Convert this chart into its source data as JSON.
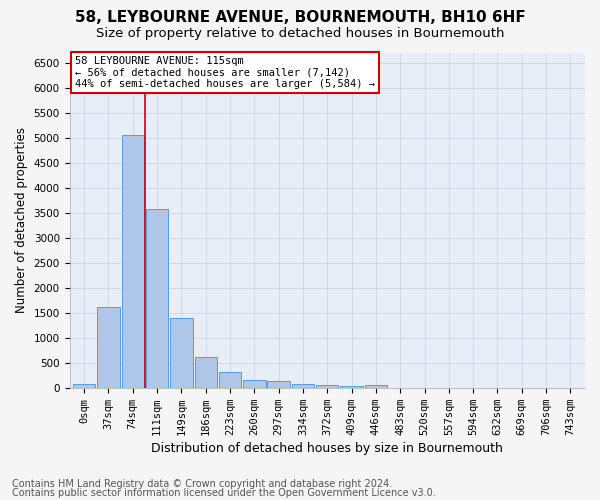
{
  "title1": "58, LEYBOURNE AVENUE, BOURNEMOUTH, BH10 6HF",
  "title2": "Size of property relative to detached houses in Bournemouth",
  "xlabel": "Distribution of detached houses by size in Bournemouth",
  "ylabel": "Number of detached properties",
  "footer1": "Contains HM Land Registry data © Crown copyright and database right 2024.",
  "footer2": "Contains public sector information licensed under the Open Government Licence v3.0.",
  "bar_labels": [
    "0sqm",
    "37sqm",
    "74sqm",
    "111sqm",
    "149sqm",
    "186sqm",
    "223sqm",
    "260sqm",
    "297sqm",
    "334sqm",
    "372sqm",
    "409sqm",
    "446sqm",
    "483sqm",
    "520sqm",
    "557sqm",
    "594sqm",
    "632sqm",
    "669sqm",
    "706sqm",
    "743sqm"
  ],
  "bar_values": [
    70,
    1620,
    5060,
    3580,
    1400,
    610,
    310,
    165,
    130,
    80,
    50,
    35,
    55,
    0,
    0,
    0,
    0,
    0,
    0,
    0,
    0
  ],
  "bar_color": "#aec6e8",
  "bar_edge_color": "#5b9bd5",
  "vline_x_index": 2.5,
  "vline_color": "#cc0000",
  "annotation_text": "58 LEYBOURNE AVENUE: 115sqm\n← 56% of detached houses are smaller (7,142)\n44% of semi-detached houses are larger (5,584) →",
  "annotation_box_color": "#ffffff",
  "annotation_box_edge_color": "#cc0000",
  "ylim": [
    0,
    6700
  ],
  "yticks": [
    0,
    500,
    1000,
    1500,
    2000,
    2500,
    3000,
    3500,
    4000,
    4500,
    5000,
    5500,
    6000,
    6500
  ],
  "grid_color": "#ccd5e8",
  "bg_color": "#e8eef8",
  "fig_bg_color": "#f5f5f5",
  "title1_fontsize": 11,
  "title2_fontsize": 9.5,
  "xlabel_fontsize": 9,
  "ylabel_fontsize": 8.5,
  "tick_fontsize": 7.5,
  "annotation_fontsize": 7.5,
  "footer_fontsize": 7
}
